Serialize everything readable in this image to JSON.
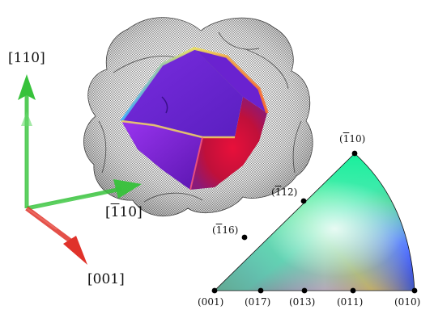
{
  "axes": {
    "y_label": "[110]",
    "x_label": {
      "bar": "1",
      "rest": "10"
    },
    "z_label": "[001]",
    "colors": {
      "green": "#37c23b",
      "red": "#e0322a"
    }
  },
  "ipf": {
    "corner_top": {
      "bar": "1",
      "rest": "10"
    },
    "edge_112": {
      "bar": "1",
      "rest": "12"
    },
    "edge_116": {
      "bar": "1",
      "rest": "16"
    },
    "base_001": "(001)",
    "base_017": "(017)",
    "base_013": "(013)",
    "base_011": "(011)",
    "base_010": "(010)"
  }
}
